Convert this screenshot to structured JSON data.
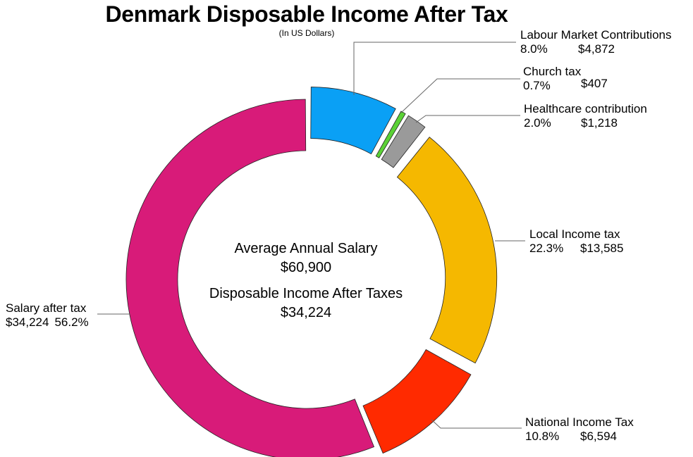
{
  "title": "Denmark Disposable Income After Tax",
  "subtitle": "(In US Dollars)",
  "center": {
    "line1": "Average Annual Salary",
    "line2": "$60,900",
    "line3": "Disposable Income After Taxes",
    "line4": "$34,224"
  },
  "chart_data": {
    "type": "pie",
    "variant": "donut",
    "title": "Denmark Disposable Income After Tax",
    "subtitle": "(In US Dollars)",
    "total": 60900,
    "slices": [
      {
        "label": "Labour Market Contributions",
        "percent": "8.0%",
        "amount": "$4,872",
        "value": 4872,
        "color": "#0aa0f5"
      },
      {
        "label": "Church tax",
        "percent": "0.7%",
        "amount": "$407",
        "value": 407,
        "color": "#5bd136"
      },
      {
        "label": "Healthcare contribution",
        "percent": "2.0%",
        "amount": "$1,218",
        "value": 1218,
        "color": "#9a9a9a"
      },
      {
        "label": "Local Income tax",
        "percent": "22.3%",
        "amount": "$13,585",
        "value": 13585,
        "color": "#f5b800"
      },
      {
        "label": "National Income Tax",
        "percent": "10.8%",
        "amount": "$6,594",
        "value": 6594,
        "color": "#ff2a00"
      },
      {
        "label": "Salary after tax",
        "percent": "56.2%",
        "amount": "$34,224",
        "value": 34224,
        "color": "#d81b79"
      }
    ]
  }
}
